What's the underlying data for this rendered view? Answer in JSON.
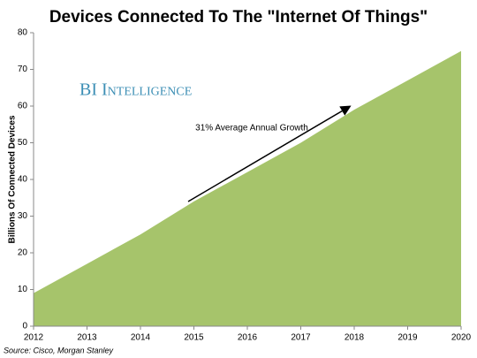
{
  "chart_data": {
    "type": "area",
    "title": "Devices Connected To The \"Internet Of Things\"",
    "y_label": "Billions Of Connected Devices",
    "x": [
      2012,
      2013,
      2014,
      2015,
      2016,
      2017,
      2018,
      2019,
      2020
    ],
    "values": [
      9,
      17,
      25,
      34,
      42,
      50,
      59,
      67,
      75
    ],
    "color": "#a6c46b",
    "xlim": [
      2012,
      2020
    ],
    "xticks": [
      2012,
      2013,
      2014,
      2015,
      2016,
      2017,
      2018,
      2019,
      2020
    ],
    "ylim": [
      0,
      80
    ],
    "yticks": [
      0,
      10,
      20,
      30,
      40,
      50,
      60,
      70,
      80
    ],
    "grid": false,
    "annotation": "31% Average Annual Growth",
    "watermark": "BI Intelligence",
    "source": "Source: Cisco, Morgan Stanley"
  }
}
